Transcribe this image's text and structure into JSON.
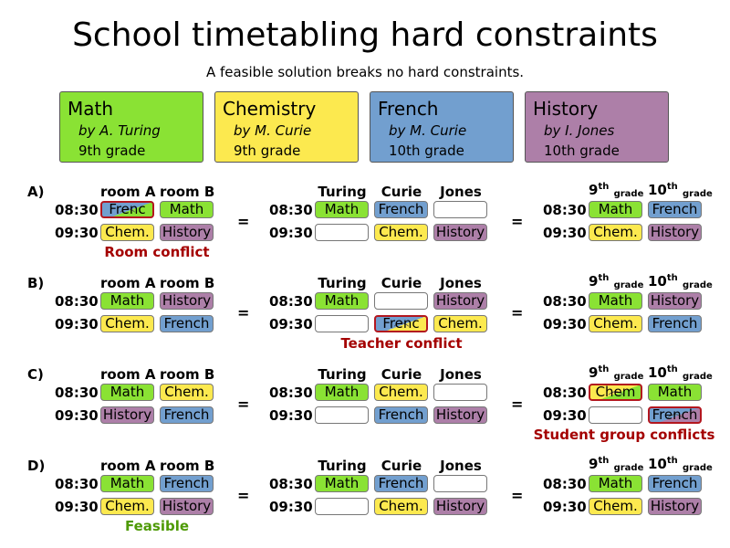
{
  "title": "School timetabling hard constraints",
  "subtitle": "A feasible solution breaks no hard constraints.",
  "colors": {
    "math": "#8ae234",
    "chem": "#fce94f",
    "french": "#729fcf",
    "history": "#ad7fa8",
    "conflict": "#a40000",
    "feasible": "#4e9a06"
  },
  "lessons": [
    {
      "name": "Math",
      "teacher": "by  A. Turing",
      "grade": "9th grade",
      "color": "math"
    },
    {
      "name": "Chemistry",
      "teacher": "by  M. Curie",
      "grade": "9th grade",
      "color": "chem"
    },
    {
      "name": "French",
      "teacher": "by  M. Curie",
      "grade": "10th grade",
      "color": "french"
    },
    {
      "name": "History",
      "teacher": "by  I. Jones",
      "grade": "10th grade",
      "color": "history"
    }
  ],
  "headers": {
    "room_a": "room A",
    "room_b": "room B",
    "turing": "Turing",
    "curie": "Curie",
    "jones": "Jones",
    "g9_num": "9",
    "g9_sup": "th",
    "g9_sub": "grade",
    "g10_num": "10",
    "g10_sup": "th",
    "g10_sub": "grade"
  },
  "times": [
    "08:30",
    "09:30"
  ],
  "equals": "=",
  "scenarios": [
    {
      "label": "A)",
      "note": "Room conflict",
      "note_color": "conflict",
      "rooms": [
        [
          "Frenc",
          "Math"
        ],
        [
          "Chem.",
          "History"
        ]
      ],
      "teachers": [
        [
          "Math",
          "French",
          ""
        ],
        [
          "",
          "Chem.",
          "History"
        ]
      ],
      "groups": [
        [
          "Math",
          "French"
        ],
        [
          "Chem.",
          "History"
        ]
      ]
    },
    {
      "label": "B)",
      "note": "Teacher conflict",
      "note_color": "conflict",
      "rooms": [
        [
          "Math",
          "History"
        ],
        [
          "Chem.",
          "French"
        ]
      ],
      "teachers": [
        [
          "Math",
          "",
          "History"
        ],
        [
          "",
          "Frenc",
          "Chem."
        ]
      ],
      "groups": [
        [
          "Math",
          "History"
        ],
        [
          "Chem.",
          "French"
        ]
      ]
    },
    {
      "label": "C)",
      "note": "Student group conflicts",
      "note_color": "conflict",
      "rooms": [
        [
          "Math",
          "Chem."
        ],
        [
          "History",
          "French"
        ]
      ],
      "teachers": [
        [
          "Math",
          "Chem.",
          ""
        ],
        [
          "",
          "French",
          "History"
        ]
      ],
      "groups": [
        [
          "Chem",
          "Math"
        ],
        [
          "",
          "French"
        ]
      ]
    },
    {
      "label": "D)",
      "note": "Feasible",
      "note_color": "feasible",
      "rooms": [
        [
          "Math",
          "French"
        ],
        [
          "Chem.",
          "History"
        ]
      ],
      "teachers": [
        [
          "Math",
          "French",
          ""
        ],
        [
          "",
          "Chem.",
          "History"
        ]
      ],
      "groups": [
        [
          "Math",
          "French"
        ],
        [
          "Chem.",
          "History"
        ]
      ]
    }
  ]
}
